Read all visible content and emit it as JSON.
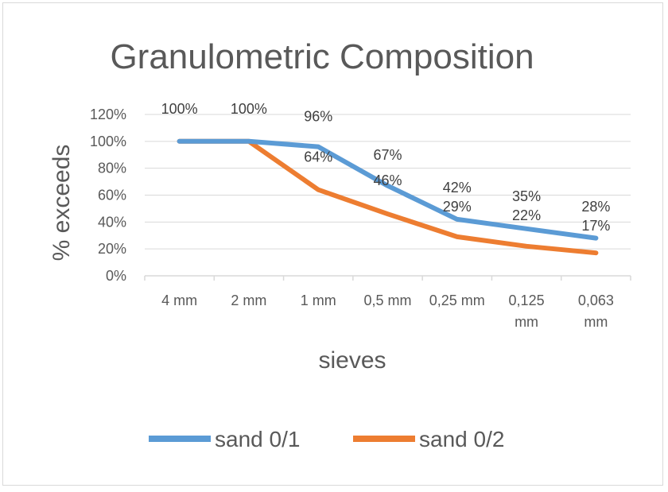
{
  "chart_data": {
    "type": "line",
    "title": "Granulometric Composition",
    "xlabel": "sieves",
    "ylabel": "% exceeds",
    "categories": [
      [
        "4 mm"
      ],
      [
        "2 mm"
      ],
      [
        "1 mm"
      ],
      [
        "0,5 mm"
      ],
      [
        "0,25 mm"
      ],
      [
        "0,125",
        "mm"
      ],
      [
        "0,063",
        "mm"
      ]
    ],
    "y_ticks": [
      "0%",
      "20%",
      "40%",
      "60%",
      "80%",
      "100%",
      "120%"
    ],
    "ylim": [
      0,
      120
    ],
    "grid": true,
    "legend_position": "bottom",
    "series": [
      {
        "name": "sand 0/1",
        "color": "#5b9bd5",
        "values": [
          100,
          100,
          96,
          67,
          42,
          35,
          28
        ],
        "labels": [
          "100%",
          "100%",
          "96%",
          "67%",
          "42%",
          "35%",
          "28%"
        ]
      },
      {
        "name": "sand 0/2",
        "color": "#ed7d31",
        "values": [
          100,
          100,
          64,
          46,
          29,
          22,
          17
        ],
        "labels": [
          "",
          "",
          "64%",
          "46%",
          "29%",
          "22%",
          "17%"
        ]
      }
    ]
  }
}
